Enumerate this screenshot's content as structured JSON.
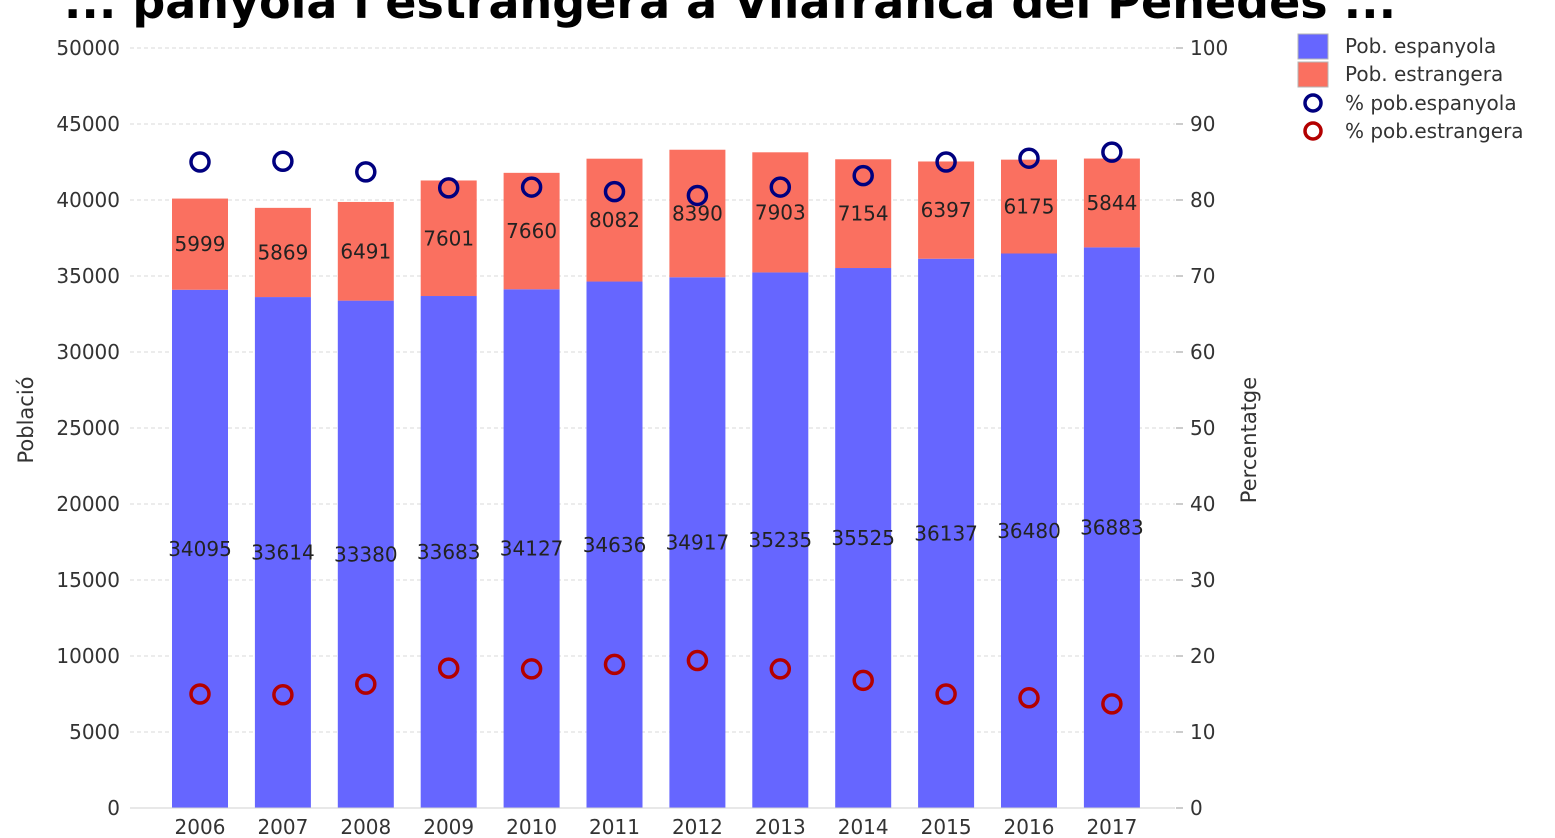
{
  "chart_data": {
    "type": "bar",
    "stacked": true,
    "title": "... panyola i estrangera a Vilafranca del Penedès ...",
    "categories": [
      "2006",
      "2007",
      "2008",
      "2009",
      "2010",
      "2011",
      "2012",
      "2013",
      "2014",
      "2015",
      "2016",
      "2017"
    ],
    "series": [
      {
        "name": "Pob. espanyola",
        "type": "bar",
        "axis": "left",
        "color": "#6666ff",
        "values": [
          34095,
          33614,
          33380,
          33683,
          34127,
          34636,
          34917,
          35235,
          35525,
          36137,
          36480,
          36883
        ]
      },
      {
        "name": "Pob. estrangera",
        "type": "bar",
        "axis": "left",
        "color": "#fa7060",
        "values": [
          5999,
          5869,
          6491,
          7601,
          7660,
          8082,
          8390,
          7903,
          7154,
          6397,
          6175,
          5844
        ]
      },
      {
        "name": "% pob.espanyola",
        "type": "scatter",
        "axis": "right",
        "color": "#00007f",
        "values": [
          85.0,
          85.1,
          83.7,
          81.6,
          81.7,
          81.1,
          80.6,
          81.7,
          83.2,
          85.0,
          85.5,
          86.3
        ]
      },
      {
        "name": "% pob.estrangera",
        "type": "scatter",
        "axis": "right",
        "color": "#b30000",
        "values": [
          15.0,
          14.9,
          16.3,
          18.4,
          18.3,
          18.9,
          19.4,
          18.3,
          16.8,
          15.0,
          14.5,
          13.7
        ]
      }
    ],
    "ylabel": "Població",
    "ylabel_right": "Percentatge",
    "ylim": [
      0,
      50000
    ],
    "ylim_right": [
      0,
      100
    ],
    "yticks": [
      "0",
      "5000",
      "10000",
      "15000",
      "20000",
      "25000",
      "30000",
      "35000",
      "40000",
      "45000",
      "50000"
    ],
    "yticks_right": [
      "0",
      "10",
      "20",
      "30",
      "40",
      "50",
      "60",
      "70",
      "80",
      "90",
      "100"
    ],
    "grid": true,
    "legend_position": "top-right"
  }
}
